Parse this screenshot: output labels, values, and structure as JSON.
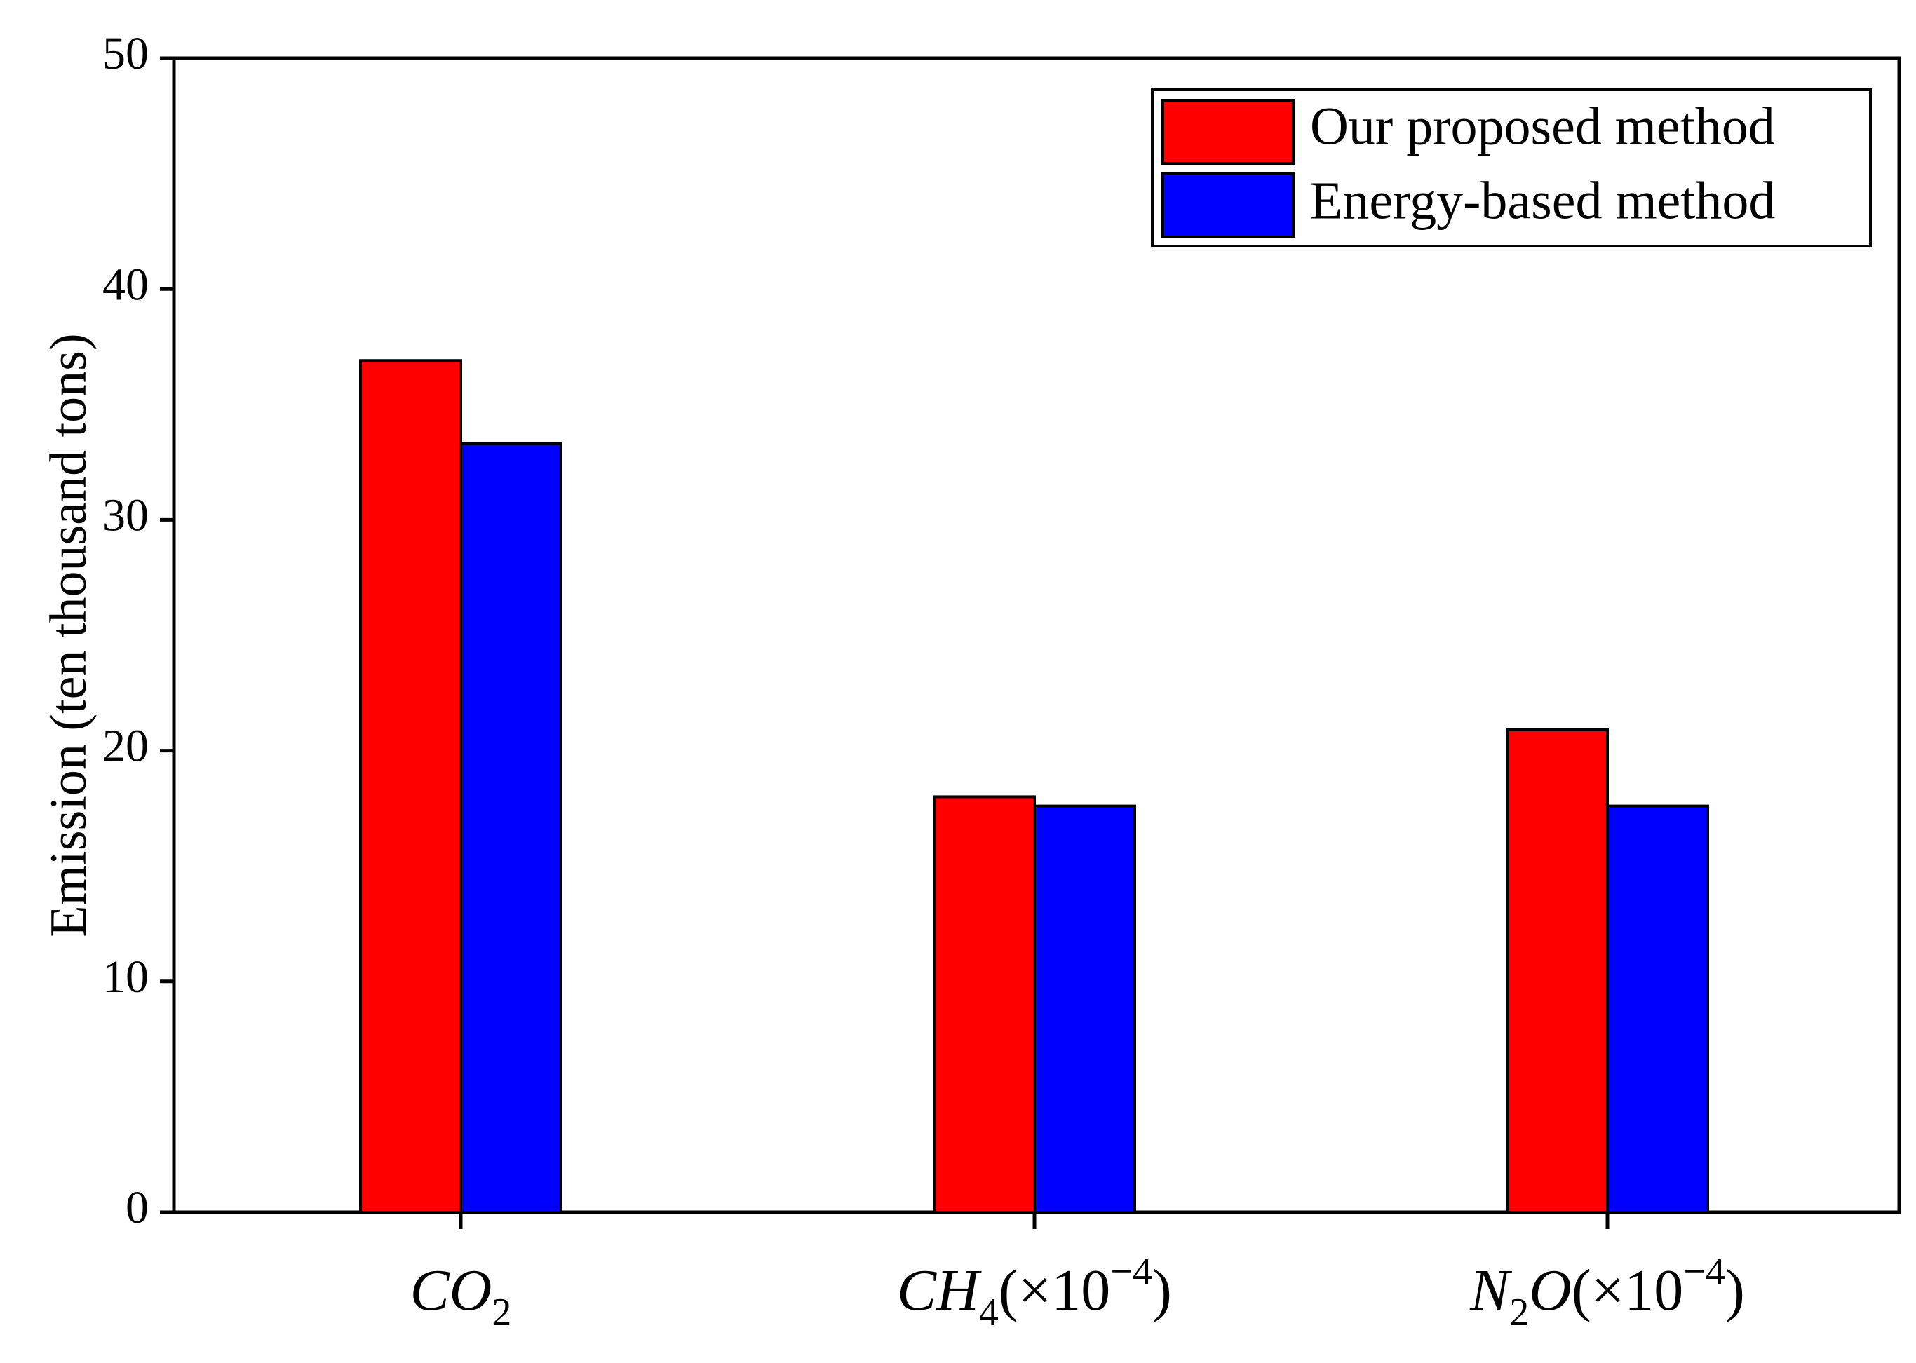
{
  "chart_data": {
    "type": "bar",
    "title": "",
    "xlabel": "",
    "ylabel": "Emission (ten thousand tons)",
    "ylim": [
      0,
      50
    ],
    "yticks": [
      "0",
      "10",
      "20",
      "30",
      "40",
      "50"
    ],
    "grid": false,
    "legend_position": "top-right",
    "categories": [
      {
        "main": "CO",
        "sub": "2",
        "suffix": ""
      },
      {
        "main": "CH",
        "sub": "4",
        "suffix": "(×10",
        "sup": "−4",
        "close": ")"
      },
      {
        "main": "N",
        "sub": "2",
        "mid": "O",
        "suffix": "(×10",
        "sup": "−4",
        "close": ")"
      }
    ],
    "category_labels": [
      "CO2",
      "CH4(×10−4)",
      "N2O(×10−4)"
    ],
    "series": [
      {
        "name": "Our proposed method",
        "color": "#ff0000",
        "values": [
          36.9,
          18.0,
          20.9
        ]
      },
      {
        "name": "Energy-based method",
        "color": "#0000ff",
        "values": [
          33.3,
          17.6,
          17.6
        ]
      }
    ]
  }
}
